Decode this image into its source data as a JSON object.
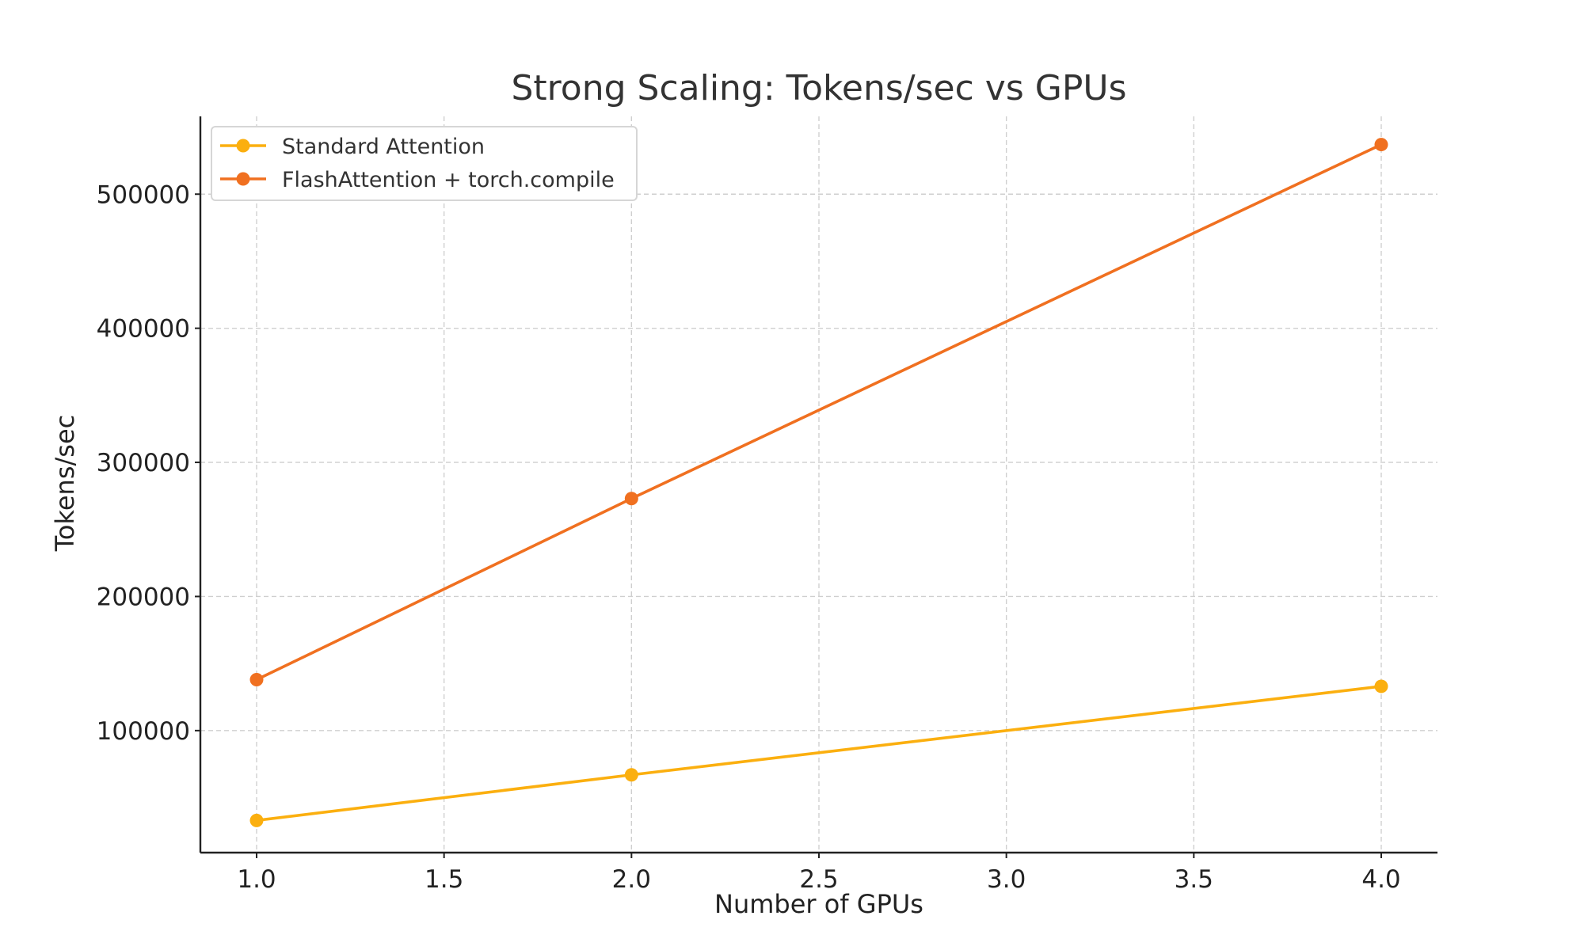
{
  "chart_data": {
    "type": "line",
    "title": "Strong Scaling: Tokens/sec vs GPUs",
    "xlabel": "Number of GPUs",
    "ylabel": "Tokens/sec",
    "x": [
      1,
      2,
      4
    ],
    "xlim": [
      0.85,
      4.15
    ],
    "ylim": [
      9000,
      558000
    ],
    "xticks": [
      "1.0",
      "1.5",
      "2.0",
      "2.5",
      "3.0",
      "3.5",
      "4.0"
    ],
    "xtick_values": [
      1.0,
      1.5,
      2.0,
      2.5,
      3.0,
      3.5,
      4.0
    ],
    "yticks": [
      "100000",
      "200000",
      "300000",
      "400000",
      "500000"
    ],
    "ytick_values": [
      100000,
      200000,
      300000,
      400000,
      500000
    ],
    "grid": true,
    "legend_position": "top-left",
    "series": [
      {
        "name": "Standard Attention",
        "values": [
          33000,
          67000,
          133000
        ],
        "color": "#FBAF0F"
      },
      {
        "name": "FlashAttention + torch.compile",
        "values": [
          138000,
          273000,
          537000
        ],
        "color": "#F07020"
      }
    ]
  }
}
